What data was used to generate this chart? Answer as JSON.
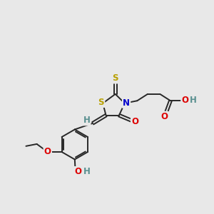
{
  "background_color": "#e8e8e8",
  "bond_color": "#282828",
  "S_color": "#b8a000",
  "N_color": "#0000cc",
  "O_color": "#dd0000",
  "H_color": "#5a9090",
  "lw": 1.4,
  "fs": 8.5,
  "figsize": [
    3.0,
    3.0
  ],
  "dpi": 100,
  "xlim": [
    0,
    10
  ],
  "ylim": [
    0,
    10
  ]
}
